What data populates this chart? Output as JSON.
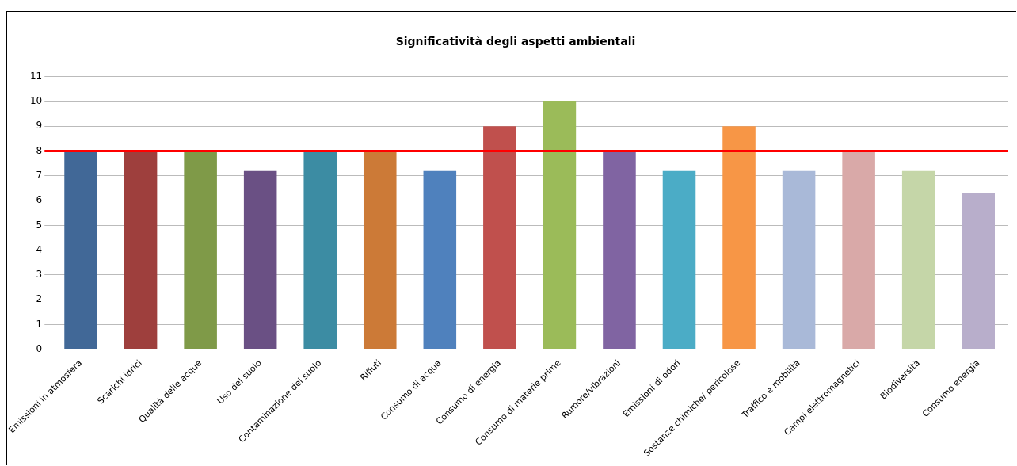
{
  "chart_data": {
    "type": "bar",
    "title": "Significatività degli aspetti ambientali",
    "categories": [
      "Emissioni in atmosfera",
      "Scarichi idrici",
      "Qualità delle acque",
      "Uso del suolo",
      "Contaminazione del suolo",
      "Rifiuti",
      "Consumo di acqua",
      "Consumo di energia",
      "Consumo di materie prime",
      "Rumore/vibrazioni",
      "Emissioni di odori",
      "Sostanze chimiche/ pericolose",
      "Traffico e mobilità",
      "Campi elettromagnetici",
      "Biodiversità",
      "Consumo energia"
    ],
    "values": [
      8,
      8,
      8,
      7.2,
      8,
      8,
      7.2,
      9,
      10,
      8,
      7.2,
      9,
      7.2,
      8,
      7.2,
      6.3
    ],
    "colors": [
      "#416897",
      "#9e3f3d",
      "#7f9a48",
      "#6a5084",
      "#3c8ca3",
      "#cc7a37",
      "#4f81bd",
      "#c0504d",
      "#9bbb59",
      "#8064a2",
      "#4bacc6",
      "#f79646",
      "#a9b9d8",
      "#d9a9a8",
      "#c5d6a8",
      "#b8aecb"
    ],
    "ylim": [
      0,
      11
    ],
    "yticks": [
      0,
      1,
      2,
      3,
      4,
      5,
      6,
      7,
      8,
      9,
      10,
      11
    ],
    "grid": "y",
    "ref_lines": [
      {
        "axis": "y",
        "value": 8,
        "color": "#ff0000"
      }
    ]
  }
}
